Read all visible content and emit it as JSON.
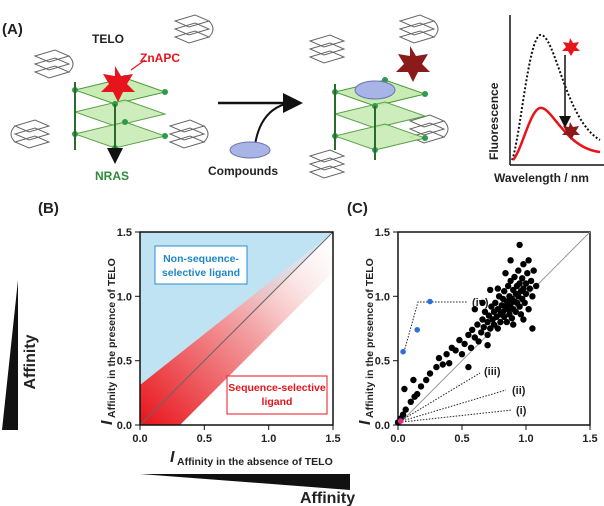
{
  "panel_a": {
    "label": "(A)",
    "telo": "TELO",
    "znapc": "ZnAPC",
    "nras": "NRAS",
    "compounds": "Compounds",
    "fluorescence": "Fluorescence",
    "wavelength": "Wavelength / nm"
  },
  "panel_b": {
    "label": "(B)",
    "affinity_left": "Affinity",
    "affinity_bottom": "Affinity",
    "non_seq_line1": "Non-sequence-",
    "non_seq_line2": "selective ligand",
    "seq_line1": "Sequence-selective",
    "seq_line2": "ligand",
    "ylabel_main": "I",
    "ylabel_sub": "Affinity in the presence of TELO",
    "xlabel_main": "I",
    "xlabel_sub": "Affinity in the absence of TELO",
    "ticks": [
      "0.0",
      "0.5",
      "1.0",
      "1.5"
    ],
    "colors": {
      "blue_region": "#bfe3f3",
      "red_region": "#e8141b"
    }
  },
  "panel_c": {
    "label": "(C)",
    "ylabel_main": "I",
    "ylabel_sub": "Affinity in the presence of TELO",
    "ticks": [
      "0.0",
      "0.5",
      "1.0",
      "1.5"
    ],
    "callouts": [
      "(iv)",
      "(iii)",
      "(ii)",
      "(i)"
    ]
  },
  "chart_data": [
    {
      "type": "scatter",
      "panel": "C",
      "xlim": [
        0,
        1.5
      ],
      "ylim": [
        0,
        1.5
      ],
      "grid": false,
      "diagonal": true,
      "series": [
        {
          "color": "#000000",
          "points": [
            [
              0.0,
              0.02
            ],
            [
              0.02,
              0.05
            ],
            [
              0.04,
              0.08
            ],
            [
              0.06,
              0.12
            ],
            [
              0.1,
              0.18
            ],
            [
              0.13,
              0.22
            ],
            [
              0.15,
              0.24
            ],
            [
              0.05,
              0.28
            ],
            [
              0.12,
              0.35
            ],
            [
              0.18,
              0.3
            ],
            [
              0.22,
              0.35
            ],
            [
              0.25,
              0.4
            ],
            [
              0.3,
              0.45
            ],
            [
              0.32,
              0.52
            ],
            [
              0.35,
              0.47
            ],
            [
              0.38,
              0.55
            ],
            [
              0.4,
              0.48
            ],
            [
              0.42,
              0.6
            ],
            [
              0.45,
              0.58
            ],
            [
              0.48,
              0.66
            ],
            [
              0.5,
              0.55
            ],
            [
              0.52,
              0.63
            ],
            [
              0.55,
              0.7
            ],
            [
              0.57,
              0.6
            ],
            [
              0.58,
              0.74
            ],
            [
              0.6,
              0.68
            ],
            [
              0.62,
              0.78
            ],
            [
              0.63,
              0.65
            ],
            [
              0.65,
              0.72
            ],
            [
              0.66,
              0.82
            ],
            [
              0.67,
              0.76
            ],
            [
              0.68,
              0.88
            ],
            [
              0.7,
              0.7
            ],
            [
              0.7,
              0.8
            ],
            [
              0.71,
              0.85
            ],
            [
              0.72,
              0.75
            ],
            [
              0.73,
              0.92
            ],
            [
              0.74,
              0.82
            ],
            [
              0.75,
              0.78
            ],
            [
              0.75,
              0.88
            ],
            [
              0.76,
              0.95
            ],
            [
              0.77,
              0.84
            ],
            [
              0.78,
              0.9
            ],
            [
              0.78,
              0.75
            ],
            [
              0.79,
              1.0
            ],
            [
              0.8,
              0.86
            ],
            [
              0.8,
              0.8
            ],
            [
              0.81,
              0.93
            ],
            [
              0.82,
              0.98
            ],
            [
              0.82,
              0.88
            ],
            [
              0.83,
              0.84
            ],
            [
              0.83,
              1.04
            ],
            [
              0.84,
              0.92
            ],
            [
              0.85,
              0.96
            ],
            [
              0.85,
              0.8
            ],
            [
              0.86,
              1.08
            ],
            [
              0.86,
              0.9
            ],
            [
              0.87,
              0.86
            ],
            [
              0.87,
              1.0
            ],
            [
              0.88,
              0.94
            ],
            [
              0.88,
              1.12
            ],
            [
              0.89,
              0.98
            ],
            [
              0.89,
              0.83
            ],
            [
              0.9,
              1.05
            ],
            [
              0.9,
              0.9
            ],
            [
              0.91,
              0.96
            ],
            [
              0.91,
              1.15
            ],
            [
              0.92,
              1.02
            ],
            [
              0.92,
              0.88
            ],
            [
              0.93,
              1.08
            ],
            [
              0.93,
              0.95
            ],
            [
              0.94,
              1.0
            ],
            [
              0.94,
              1.2
            ],
            [
              0.95,
              0.92
            ],
            [
              0.95,
              1.1
            ],
            [
              0.96,
              1.04
            ],
            [
              0.96,
              0.86
            ],
            [
              0.97,
              1.14
            ],
            [
              0.97,
              0.98
            ],
            [
              0.98,
              1.06
            ],
            [
              0.98,
              1.25
            ],
            [
              0.99,
              0.95
            ],
            [
              1.0,
              1.1
            ],
            [
              1.0,
              1.02
            ],
            [
              1.01,
              1.18
            ],
            [
              1.02,
              0.9
            ],
            [
              1.03,
              1.06
            ],
            [
              1.04,
              1.12
            ],
            [
              1.05,
              1.0
            ],
            [
              1.06,
              1.2
            ],
            [
              1.08,
              1.08
            ],
            [
              0.95,
              1.4
            ],
            [
              1.05,
              0.75
            ],
            [
              0.6,
              0.9
            ],
            [
              0.55,
              0.45
            ],
            [
              0.72,
              1.05
            ],
            [
              0.88,
              1.28
            ],
            [
              0.78,
              1.06
            ],
            [
              0.66,
              0.95
            ],
            [
              0.84,
              1.18
            ],
            [
              0.9,
              0.78
            ],
            [
              1.02,
              1.28
            ],
            [
              0.98,
              0.82
            ],
            [
              0.7,
              0.62
            ]
          ]
        },
        {
          "color": "#2a6fdb",
          "points": [
            [
              0.04,
              0.57
            ],
            [
              0.15,
              0.74
            ],
            [
              0.25,
              0.96
            ]
          ]
        },
        {
          "color": "#e02a8a",
          "points": [
            [
              0.02,
              0.03
            ]
          ]
        }
      ]
    }
  ]
}
